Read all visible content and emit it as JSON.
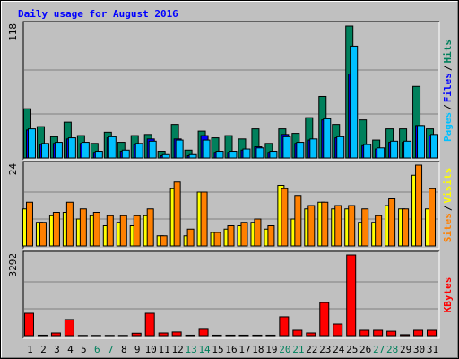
{
  "chart_data": [
    {
      "type": "bar",
      "title": "Daily usage for August 2016",
      "separator": "/",
      "ylim": [
        0,
        118
      ],
      "yticks": [
        118
      ],
      "legend_order": [
        2,
        1,
        0
      ],
      "series": [
        {
          "name": "Hits",
          "color": "#00805c",
          "values": [
            44,
            28,
            19,
            32,
            20,
            13,
            23,
            14,
            20,
            21,
            6,
            30,
            7,
            24,
            18,
            20,
            17,
            26,
            13,
            26,
            22,
            36,
            55,
            30,
            118,
            34,
            16,
            26,
            26,
            64,
            26
          ]
        },
        {
          "name": "Files",
          "color": "#0000ff",
          "values": [
            25,
            12,
            13,
            17,
            13,
            5,
            18,
            6,
            12,
            17,
            2,
            17,
            2,
            20,
            5,
            5,
            7,
            10,
            5,
            21,
            13,
            16,
            34,
            18,
            75,
            11,
            8,
            14,
            14,
            29,
            20
          ]
        },
        {
          "name": "Pages",
          "color": "#00c0ff",
          "values": [
            26,
            13,
            14,
            18,
            14,
            6,
            19,
            7,
            13,
            15,
            3,
            16,
            3,
            16,
            6,
            6,
            8,
            9,
            6,
            19,
            14,
            17,
            35,
            19,
            100,
            12,
            9,
            15,
            15,
            29,
            21
          ]
        }
      ]
    },
    {
      "type": "bar",
      "separator": "/",
      "ylim": [
        0,
        24
      ],
      "yticks": [
        24
      ],
      "legend_order": [
        1,
        0
      ],
      "series": [
        {
          "name": "Visits",
          "color": "#ffff00",
          "values": [
            11,
            7,
            9,
            10,
            8,
            9,
            6,
            7,
            6,
            9,
            3,
            17,
            3,
            16,
            4,
            5,
            6,
            7,
            5,
            18,
            8,
            11,
            13,
            11,
            11,
            7,
            7,
            12,
            11,
            21,
            11
          ]
        },
        {
          "name": "Sites",
          "color": "#ff8000",
          "values": [
            13,
            7,
            10,
            13,
            11,
            10,
            9,
            9,
            9,
            11,
            3,
            19,
            5,
            16,
            4,
            6,
            7,
            8,
            6,
            17,
            15,
            12,
            13,
            12,
            12,
            11,
            9,
            14,
            11,
            24,
            17
          ]
        }
      ]
    },
    {
      "type": "bar",
      "ylim": [
        0,
        3292
      ],
      "yticks": [
        3292
      ],
      "categories": [
        "1",
        "2",
        "3",
        "4",
        "5",
        "6",
        "7",
        "8",
        "9",
        "10",
        "11",
        "12",
        "13",
        "14",
        "15",
        "16",
        "17",
        "18",
        "19",
        "20",
        "21",
        "22",
        "23",
        "24",
        "25",
        "26",
        "27",
        "28",
        "29",
        "30",
        "31"
      ],
      "category_colors": [
        "#000000",
        "#000000",
        "#000000",
        "#000000",
        "#000000",
        "#00805c",
        "#00805c",
        "#000000",
        "#000000",
        "#000000",
        "#000000",
        "#000000",
        "#00805c",
        "#00805c",
        "#000000",
        "#000000",
        "#000000",
        "#000000",
        "#000000",
        "#00805c",
        "#00805c",
        "#000000",
        "#000000",
        "#000000",
        "#000000",
        "#000000",
        "#00805c",
        "#00805c",
        "#000000",
        "#000000",
        "#000000"
      ],
      "legend_order": [
        0
      ],
      "series": [
        {
          "name": "KBytes",
          "color": "#ff0000",
          "values": [
            915,
            20,
            110,
            660,
            10,
            10,
            10,
            10,
            100,
            915,
            110,
            150,
            20,
            260,
            20,
            20,
            20,
            20,
            20,
            770,
            220,
            110,
            1350,
            475,
            3292,
            220,
            220,
            180,
            40,
            220,
            220
          ]
        }
      ]
    }
  ]
}
